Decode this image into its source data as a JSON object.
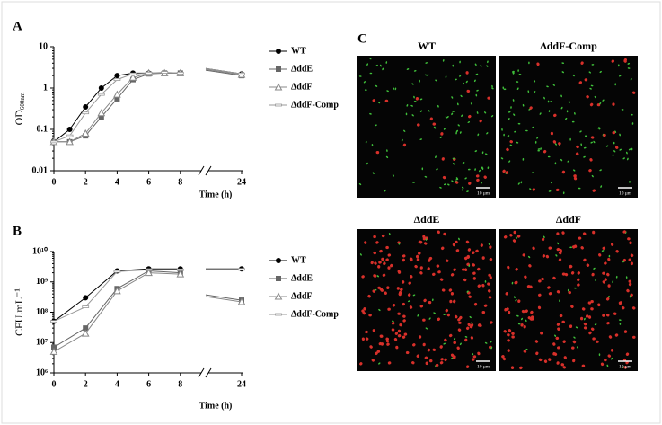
{
  "chart_data": [
    {
      "type": "line",
      "panel": "A",
      "y_label": "OD",
      "y_label_sub": "600nm",
      "x_label": "Time (h)",
      "log_y": true,
      "ylim": [
        0.01,
        10
      ],
      "yticks": [
        0.01,
        0.1,
        1,
        10
      ],
      "xticks": [
        0,
        2,
        4,
        6,
        8,
        24
      ],
      "x": [
        0,
        1,
        2,
        3,
        4,
        5,
        6,
        7,
        8,
        24
      ],
      "series": [
        {
          "name": "WT",
          "color": "#000000",
          "marker": "circle",
          "values": [
            0.05,
            0.1,
            0.35,
            1.0,
            2.0,
            2.3,
            2.3,
            2.3,
            2.3,
            2.2
          ]
        },
        {
          "name": "ΔddE",
          "color": "#666666",
          "marker": "square",
          "values": [
            0.05,
            0.05,
            0.07,
            0.2,
            0.55,
            1.6,
            2.2,
            2.3,
            2.3,
            2.0
          ]
        },
        {
          "name": "ΔddF",
          "color": "#888888",
          "marker": "triangle",
          "values": [
            0.05,
            0.05,
            0.08,
            0.25,
            0.7,
            1.8,
            2.3,
            2.3,
            2.3,
            2.1
          ]
        },
        {
          "name": "ΔddF-Comp",
          "color": "#999999",
          "marker": "dash",
          "values": [
            0.05,
            0.07,
            0.25,
            0.7,
            1.6,
            2.2,
            2.3,
            2.4,
            2.3,
            2.2
          ]
        }
      ]
    },
    {
      "type": "line",
      "panel": "B",
      "y_label": "CFU.mL⁻¹",
      "x_label": "Time (h)",
      "log_y": true,
      "ylim": [
        1000000,
        10000000000
      ],
      "yticks": [
        {
          "value": 1000000,
          "label": "10⁶"
        },
        {
          "value": 10000000,
          "label": "10⁷"
        },
        {
          "value": 100000000,
          "label": "10⁸"
        },
        {
          "value": 1000000000,
          "label": "10⁹"
        },
        {
          "value": 10000000000,
          "label": "10¹⁰"
        }
      ],
      "xticks": [
        0,
        2,
        4,
        6,
        8,
        24
      ],
      "x": [
        0,
        2,
        4,
        6,
        8,
        24
      ],
      "series": [
        {
          "name": "WT",
          "color": "#000000",
          "marker": "circle",
          "values": [
            50000000,
            300000000,
            2300000000,
            2700000000,
            2700000000,
            2700000000
          ]
        },
        {
          "name": "ΔddE",
          "color": "#666666",
          "marker": "square",
          "values": [
            7000000,
            30000000,
            600000000,
            2300000000,
            2000000000,
            250000000
          ]
        },
        {
          "name": "ΔddF",
          "color": "#888888",
          "marker": "triangle",
          "values": [
            5000000,
            20000000,
            500000000,
            2000000000,
            1800000000,
            220000000
          ]
        },
        {
          "name": "ΔddF-Comp",
          "color": "#999999",
          "marker": "dash",
          "values": [
            50000000,
            150000000,
            2200000000,
            2500000000,
            2500000000,
            2600000000
          ]
        }
      ]
    }
  ],
  "micrographs": {
    "panel": "C",
    "images": [
      {
        "label": "WT",
        "scale_bar": "10 μm"
      },
      {
        "label": "ΔddF-Comp",
        "scale_bar": "10 μm"
      },
      {
        "label": "ΔddE",
        "scale_bar": "10 μm"
      },
      {
        "label": "ΔddF",
        "scale_bar": "10 μm"
      }
    ]
  }
}
